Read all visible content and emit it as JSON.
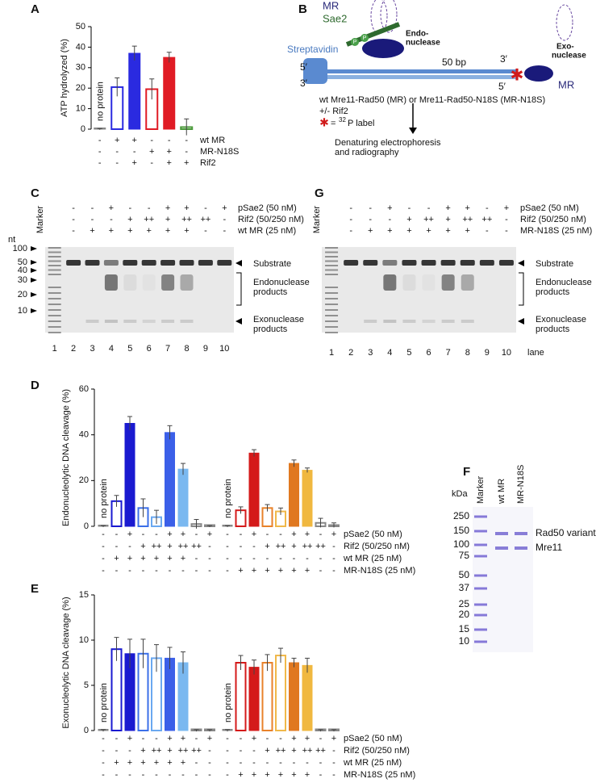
{
  "chart_data": [
    {
      "type": "bar",
      "panel": "A",
      "ylabel": "ATP hydrolyzed (%)",
      "ylim": [
        0,
        50
      ],
      "yticks": [
        0,
        10,
        20,
        30,
        40,
        50
      ],
      "values": [
        0,
        20.5,
        37,
        19.5,
        35,
        1
      ],
      "errors": [
        0.3,
        4.5,
        3.5,
        5,
        2.5,
        4
      ],
      "colors": [
        "#888888",
        "#2a2ae0",
        "#2a2ae0",
        "#e01b24",
        "#e01b24",
        "#4a9a3a"
      ],
      "filled": [
        true,
        false,
        true,
        false,
        true,
        false
      ],
      "annotations": [
        "no protein"
      ],
      "conditions": [
        {
          "name": "wt MR",
          "marks": [
            "-",
            "+",
            "+",
            "-",
            "-",
            "-"
          ]
        },
        {
          "name": "MR-N18S",
          "marks": [
            "-",
            "-",
            "-",
            "+",
            "+",
            "-"
          ]
        },
        {
          "name": "Rif2",
          "marks": [
            "-",
            "-",
            "+",
            "-",
            "+",
            "+"
          ]
        }
      ]
    },
    {
      "type": "bar",
      "panel": "D",
      "ylabel": "Endonucleolytic DNA cleavage (%)",
      "ylim": [
        0,
        60
      ],
      "yticks": [
        0,
        20,
        40,
        60
      ],
      "values": [
        0,
        11,
        45,
        8,
        4,
        41,
        25,
        1,
        0,
        0,
        7,
        32,
        8,
        6.5,
        27.5,
        24.5,
        1.5,
        0.5
      ],
      "errors": [
        0.3,
        2.5,
        3,
        4,
        3,
        3,
        2.5,
        2,
        0.3,
        0.3,
        1.5,
        1.5,
        1.5,
        1.5,
        1.5,
        1,
        2,
        1
      ],
      "colors": [
        "#888888",
        "#1a1ad0",
        "#1a1ad0",
        "#3b6fe8",
        "#6aa8f0",
        "#3b5fe8",
        "#7ab8f0",
        "#888888",
        "#888888",
        "#888888",
        "#d41a1a",
        "#d41a1a",
        "#e8822a",
        "#f0b84a",
        "#e07820",
        "#f0b840",
        "#888888",
        "#888888"
      ],
      "filled": [
        true,
        false,
        true,
        false,
        false,
        true,
        true,
        false,
        false,
        true,
        false,
        true,
        false,
        false,
        true,
        true,
        false,
        false
      ],
      "annotations": [
        "no protein",
        "no protein"
      ],
      "conditions": [
        {
          "name": "pSae2 (50 nM)",
          "marks": [
            "-",
            "-",
            "+",
            "-",
            "-",
            "+",
            "+",
            "-",
            "+",
            "-",
            "-",
            "+",
            "-",
            "-",
            "+",
            "+",
            "-",
            "+"
          ]
        },
        {
          "name": "Rif2 (50/250 nM)",
          "marks": [
            "-",
            "-",
            "-",
            "+",
            "++",
            "+",
            "++",
            "++",
            "-",
            "-",
            "-",
            "-",
            "+",
            "++",
            "+",
            "++",
            "++",
            "-"
          ]
        },
        {
          "name": "wt MR (25 nM)",
          "marks": [
            "-",
            "+",
            "+",
            "+",
            "+",
            "+",
            "+",
            "-",
            "-",
            "-",
            "-",
            "-",
            "-",
            "-",
            "-",
            "-",
            "-",
            "-"
          ]
        },
        {
          "name": "MR-N18S (25 nM)",
          "marks": [
            "-",
            "-",
            "-",
            "-",
            "-",
            "-",
            "-",
            "-",
            "-",
            "-",
            "+",
            "+",
            "+",
            "+",
            "+",
            "+",
            "-",
            "-"
          ]
        }
      ]
    },
    {
      "type": "bar",
      "panel": "E",
      "ylabel": "Exonucleolytic DNA cleavage (%)",
      "ylim": [
        0,
        15
      ],
      "yticks": [
        0,
        5,
        10,
        15
      ],
      "values": [
        0,
        9,
        8.5,
        8.5,
        8,
        8,
        7.5,
        0,
        0,
        0,
        7.5,
        7,
        7.5,
        8.3,
        7.5,
        7.2,
        0,
        0
      ],
      "errors": [
        0.1,
        1.3,
        1.6,
        1.6,
        1.5,
        1.2,
        1.2,
        0.1,
        0.1,
        0.1,
        0.8,
        0.8,
        0.9,
        0.8,
        0.5,
        0.8,
        0.1,
        0.1
      ],
      "colors": [
        "#888888",
        "#1a1ad0",
        "#1a1ad0",
        "#3b6fe8",
        "#6aa8f0",
        "#3b5fe8",
        "#7ab8f0",
        "#888888",
        "#888888",
        "#888888",
        "#d41a1a",
        "#d41a1a",
        "#e8822a",
        "#f0b84a",
        "#e07820",
        "#f0b840",
        "#888888",
        "#888888"
      ],
      "filled": [
        true,
        false,
        true,
        false,
        false,
        true,
        true,
        false,
        false,
        true,
        false,
        true,
        false,
        false,
        true,
        true,
        false,
        false
      ],
      "annotations": [
        "no protein",
        "no protein"
      ],
      "conditions": [
        {
          "name": "pSae2 (50 nM)",
          "marks": [
            "-",
            "-",
            "+",
            "-",
            "-",
            "+",
            "+",
            "-",
            "+",
            "-",
            "-",
            "+",
            "-",
            "-",
            "+",
            "+",
            "-",
            "+"
          ]
        },
        {
          "name": "Rif2 (50/250 nM)",
          "marks": [
            "-",
            "-",
            "-",
            "+",
            "++",
            "+",
            "++",
            "++",
            "-",
            "-",
            "-",
            "-",
            "+",
            "++",
            "+",
            "++",
            "++",
            "-"
          ]
        },
        {
          "name": "wt MR (25 nM)",
          "marks": [
            "-",
            "+",
            "+",
            "+",
            "+",
            "+",
            "+",
            "-",
            "-",
            "-",
            "-",
            "-",
            "-",
            "-",
            "-",
            "-",
            "-",
            "-"
          ]
        },
        {
          "name": "MR-N18S (25 nM)",
          "marks": [
            "-",
            "-",
            "-",
            "-",
            "-",
            "-",
            "-",
            "-",
            "-",
            "-",
            "+",
            "+",
            "+",
            "+",
            "+",
            "+",
            "-",
            "-"
          ]
        }
      ]
    }
  ],
  "panel_b": {
    "panel": "B",
    "mr_top": "MR",
    "sae2": "Sae2",
    "phospho": [
      "P",
      "P"
    ],
    "streptavidin": "Streptavidin",
    "endo": [
      "Endo-",
      "nuclease"
    ],
    "left_top": "5′",
    "left_bottom": "3′",
    "length": "50 bp",
    "right_top": "3′",
    "right_bottom": "5′",
    "exo": [
      "Exo-",
      "nuclease"
    ],
    "mr_right": "MR",
    "caption": [
      "wt Mre11-Rad50 (MR) or Mre11-Rad50-N18S (MR-N18S)",
      "+/- Rif2"
    ],
    "label_note": [
      "=",
      "32",
      "P label"
    ],
    "arrow_text": "Denaturing electrophoresis and radiography"
  },
  "gels": [
    {
      "panel": "C",
      "marker": "Marker",
      "unit": "nt",
      "sizes": [
        "100",
        "50",
        "40",
        "30",
        "20",
        "10"
      ],
      "conditions": [
        {
          "name": "pSae2 (50 nM)",
          "marks": [
            "-",
            "-",
            "+",
            "-",
            "-",
            "+",
            "+",
            "-",
            "+"
          ]
        },
        {
          "name": "Rif2 (50/250 nM)",
          "marks": [
            "-",
            "-",
            "-",
            "+",
            "++",
            "+",
            "++",
            "++",
            "-"
          ]
        },
        {
          "name": "wt MR (25 nM)",
          "marks": [
            "-",
            "+",
            "+",
            "+",
            "+",
            "+",
            "+",
            "-",
            "-"
          ]
        }
      ],
      "bands": [
        "Substrate",
        "Endonuclease products",
        "Exonuclease products"
      ],
      "lanes": [
        "1",
        "2",
        "3",
        "4",
        "5",
        "6",
        "7",
        "8",
        "9",
        "10"
      ]
    },
    {
      "panel": "G",
      "marker": "Marker",
      "lane_word": "lane",
      "conditions": [
        {
          "name": "pSae2 (50 nM)",
          "marks": [
            "-",
            "-",
            "+",
            "-",
            "-",
            "+",
            "+",
            "-",
            "+"
          ]
        },
        {
          "name": "Rif2 (50/250 nM)",
          "marks": [
            "-",
            "-",
            "-",
            "+",
            "++",
            "+",
            "++",
            "++",
            "-"
          ]
        },
        {
          "name": "MR-N18S (25 nM)",
          "marks": [
            "-",
            "+",
            "+",
            "+",
            "+",
            "+",
            "+",
            "-",
            "-"
          ]
        }
      ],
      "bands": [
        "Substrate",
        "Endonuclease products",
        "Exonuclease products"
      ],
      "lanes": [
        "1",
        "2",
        "3",
        "4",
        "5",
        "6",
        "7",
        "8",
        "9",
        "10"
      ]
    }
  ],
  "panel_f": {
    "panel": "F",
    "unit": "kDa",
    "lanes": [
      "Marker",
      "wt MR",
      "MR-N18S"
    ],
    "sizes": [
      "250",
      "150",
      "100",
      "75",
      "50",
      "37",
      "25",
      "20",
      "15",
      "10"
    ],
    "bands": [
      "Rad50 variant",
      "Mre11"
    ]
  }
}
